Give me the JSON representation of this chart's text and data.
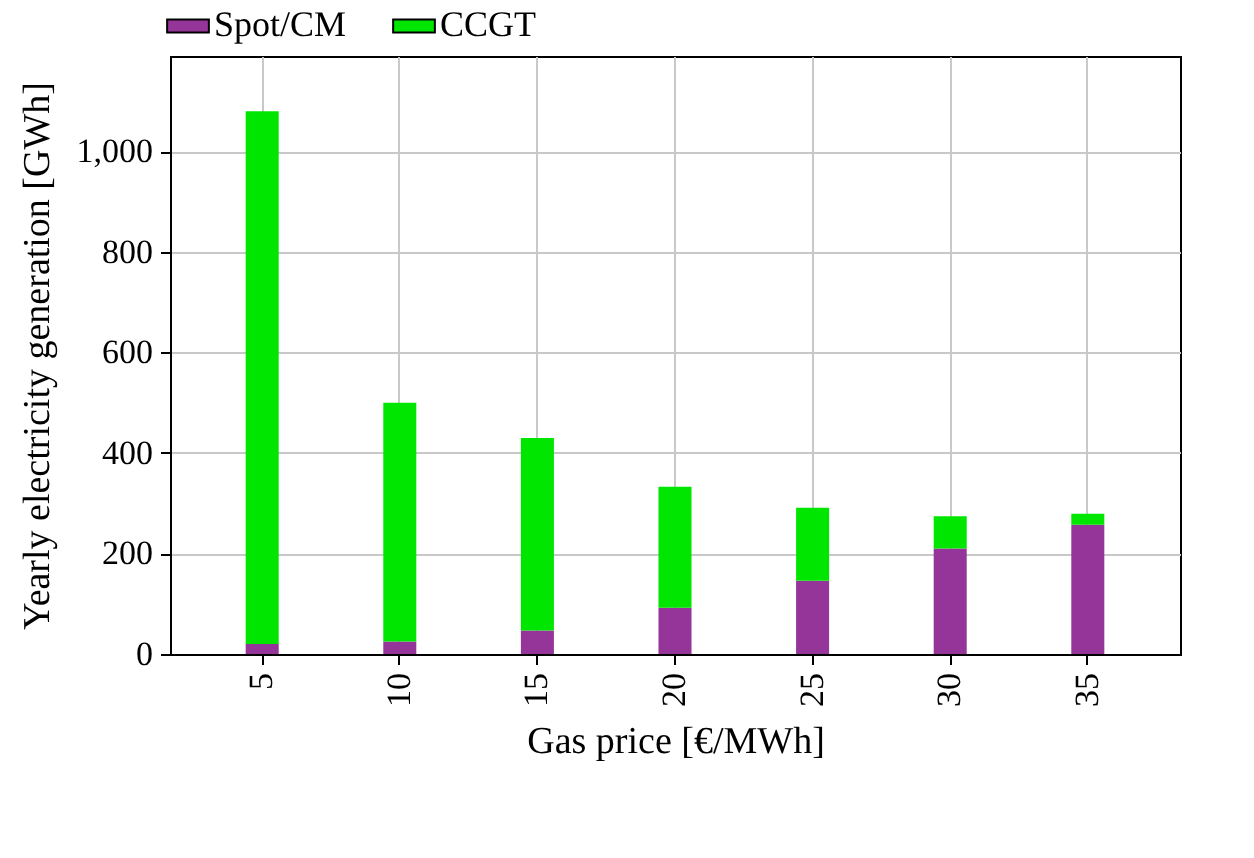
{
  "chart_data": {
    "type": "bar",
    "stacked": true,
    "xlabel": "Gas price [€/MWh]",
    "ylabel": "Yearly electricity generation [GWh]",
    "categories": [
      "5",
      "10",
      "15",
      "20",
      "25",
      "30",
      "35"
    ],
    "series": [
      {
        "name": "Spot/CM",
        "color": "#953599",
        "values": [
          20,
          25,
          47,
          92,
          146,
          210,
          257
        ]
      },
      {
        "name": "CCGT",
        "color": "#00e600",
        "values": [
          1060,
          475,
          383,
          241,
          145,
          64,
          22
        ]
      }
    ],
    "ylim": [
      0,
      1190
    ],
    "yticks": [
      0,
      {
        "value": 200,
        "label": "200"
      },
      400,
      600,
      800,
      {
        "value": 1000,
        "label": "1,000"
      }
    ],
    "grid": true,
    "legend": "top"
  }
}
